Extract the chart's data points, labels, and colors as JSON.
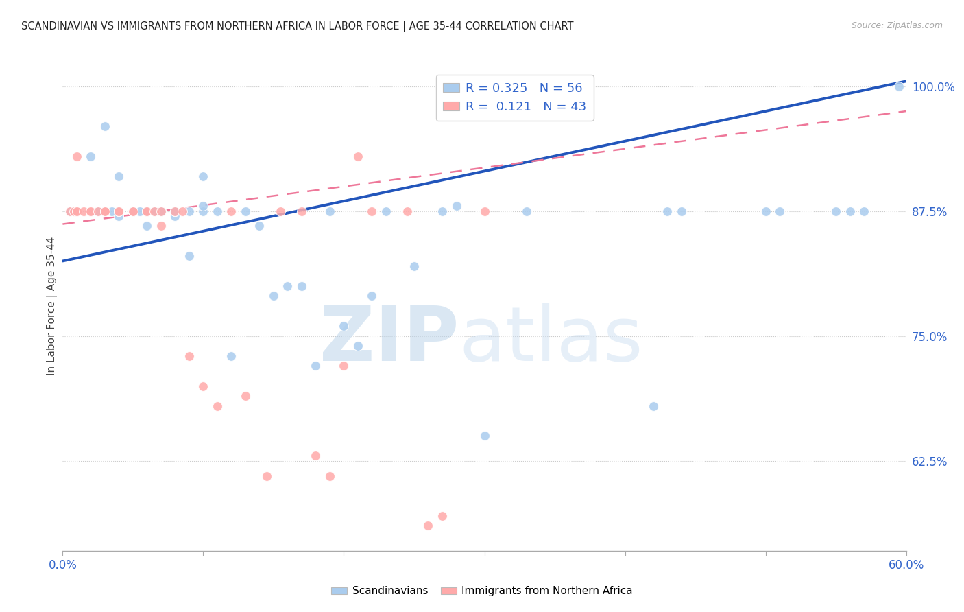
{
  "title": "SCANDINAVIAN VS IMMIGRANTS FROM NORTHERN AFRICA IN LABOR FORCE | AGE 35-44 CORRELATION CHART",
  "source": "Source: ZipAtlas.com",
  "ylabel": "In Labor Force | Age 35-44",
  "x_min": 0.0,
  "x_max": 0.6,
  "y_min": 0.535,
  "y_max": 1.025,
  "yticks": [
    0.625,
    0.75,
    0.875,
    1.0
  ],
  "ytick_labels": [
    "62.5%",
    "75.0%",
    "87.5%",
    "100.0%"
  ],
  "xticks_pos": [
    0.0,
    0.1,
    0.2,
    0.3,
    0.4,
    0.5,
    0.6
  ],
  "xtick_labels": [
    "0.0%",
    "",
    "",
    "",
    "",
    "",
    "60.0%"
  ],
  "blue_color": "#AACCEE",
  "pink_color": "#FFAAAA",
  "blue_line_color": "#2255BB",
  "pink_line_color": "#EE7799",
  "r1": "0.325",
  "n1": "56",
  "r2": "0.121",
  "n2": "43",
  "blue_line_x0": 0.0,
  "blue_line_y0": 0.825,
  "blue_line_x1": 0.6,
  "blue_line_y1": 1.005,
  "pink_line_x0": 0.0,
  "pink_line_x1": 0.6,
  "pink_line_y0": 0.862,
  "pink_line_y1": 0.975,
  "sc_x": [
    0.005,
    0.02,
    0.025,
    0.03,
    0.03,
    0.035,
    0.04,
    0.04,
    0.04,
    0.05,
    0.05,
    0.05,
    0.055,
    0.06,
    0.06,
    0.06,
    0.065,
    0.07,
    0.07,
    0.07,
    0.07,
    0.08,
    0.08,
    0.08,
    0.09,
    0.09,
    0.1,
    0.1,
    0.1,
    0.11,
    0.12,
    0.13,
    0.14,
    0.15,
    0.16,
    0.17,
    0.18,
    0.19,
    0.2,
    0.21,
    0.22,
    0.23,
    0.25,
    0.27,
    0.28,
    0.3,
    0.33,
    0.42,
    0.43,
    0.44,
    0.5,
    0.51,
    0.55,
    0.56,
    0.57,
    0.595
  ],
  "sc_y": [
    0.875,
    0.93,
    0.875,
    0.96,
    0.875,
    0.875,
    0.875,
    0.87,
    0.91,
    0.875,
    0.875,
    0.875,
    0.875,
    0.86,
    0.875,
    0.875,
    0.875,
    0.875,
    0.875,
    0.875,
    0.875,
    0.87,
    0.875,
    0.875,
    0.83,
    0.875,
    0.875,
    0.88,
    0.91,
    0.875,
    0.73,
    0.875,
    0.86,
    0.79,
    0.8,
    0.8,
    0.72,
    0.875,
    0.76,
    0.74,
    0.79,
    0.875,
    0.82,
    0.875,
    0.88,
    0.65,
    0.875,
    0.68,
    0.875,
    0.875,
    0.875,
    0.875,
    0.875,
    0.875,
    0.875,
    1.0
  ],
  "im_x": [
    0.005,
    0.008,
    0.01,
    0.01,
    0.01,
    0.015,
    0.02,
    0.02,
    0.025,
    0.03,
    0.03,
    0.03,
    0.03,
    0.04,
    0.04,
    0.04,
    0.04,
    0.05,
    0.05,
    0.06,
    0.06,
    0.065,
    0.07,
    0.07,
    0.08,
    0.085,
    0.09,
    0.1,
    0.11,
    0.12,
    0.13,
    0.145,
    0.155,
    0.17,
    0.18,
    0.19,
    0.2,
    0.21,
    0.22,
    0.245,
    0.26,
    0.27,
    0.3
  ],
  "im_y": [
    0.875,
    0.875,
    0.875,
    0.875,
    0.93,
    0.875,
    0.875,
    0.875,
    0.875,
    0.875,
    0.875,
    0.875,
    0.875,
    0.875,
    0.875,
    0.875,
    0.875,
    0.875,
    0.875,
    0.875,
    0.875,
    0.875,
    0.86,
    0.875,
    0.875,
    0.875,
    0.73,
    0.7,
    0.68,
    0.875,
    0.69,
    0.61,
    0.875,
    0.875,
    0.63,
    0.61,
    0.72,
    0.93,
    0.875,
    0.875,
    0.56,
    0.57,
    0.875
  ]
}
